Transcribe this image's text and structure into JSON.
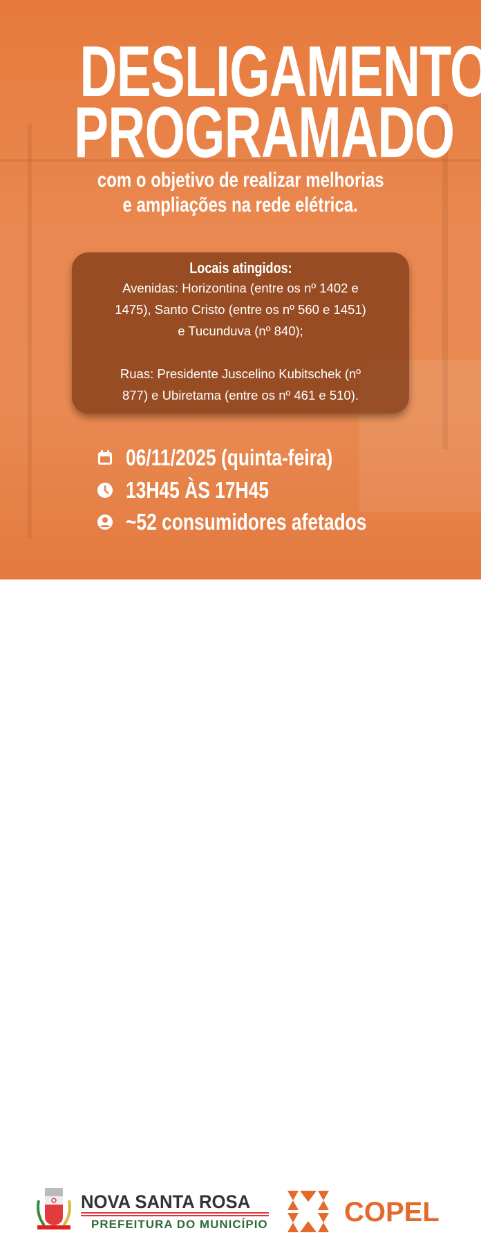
{
  "title": {
    "line1": "DESLIGAMENTO",
    "line2": "PROGRAMADO"
  },
  "subtitle": {
    "line1": "com o objetivo de realizar melhorias",
    "line2": "e ampliações na rede elétrica."
  },
  "locations": {
    "heading": "Locais atingidos:",
    "avenidas": [
      "Avenidas: Horizontina (entre os nº 1402 e",
      "1475), Santo Cristo (entre os nº 560 e 1451)",
      "e Tucunduva (nº 840);"
    ],
    "ruas": [
      "Ruas: Presidente Juscelino Kubitschek (nº",
      "877) e Ubiretama (entre os nº 461 e 510)."
    ]
  },
  "details": {
    "date": {
      "icon": "calendar-icon",
      "text": "06/11/2025 (quinta-feira)"
    },
    "time": {
      "icon": "clock-icon",
      "text": "13H45 ÀS 17H45"
    },
    "consumers": {
      "icon": "user-icon",
      "text": "~52 consumidores afetados"
    }
  },
  "footer": {
    "municipality": {
      "name": "NOVA SANTA ROSA",
      "subtitle": "PREFEITURA DO MUNICÍPIO"
    },
    "company": {
      "name": "COPEL"
    }
  },
  "colors": {
    "background": "#e8824a",
    "box": "#7a3412",
    "copel": "#e36a2c",
    "nsr_green": "#2e6b3a",
    "nsr_red": "#d9383a"
  }
}
